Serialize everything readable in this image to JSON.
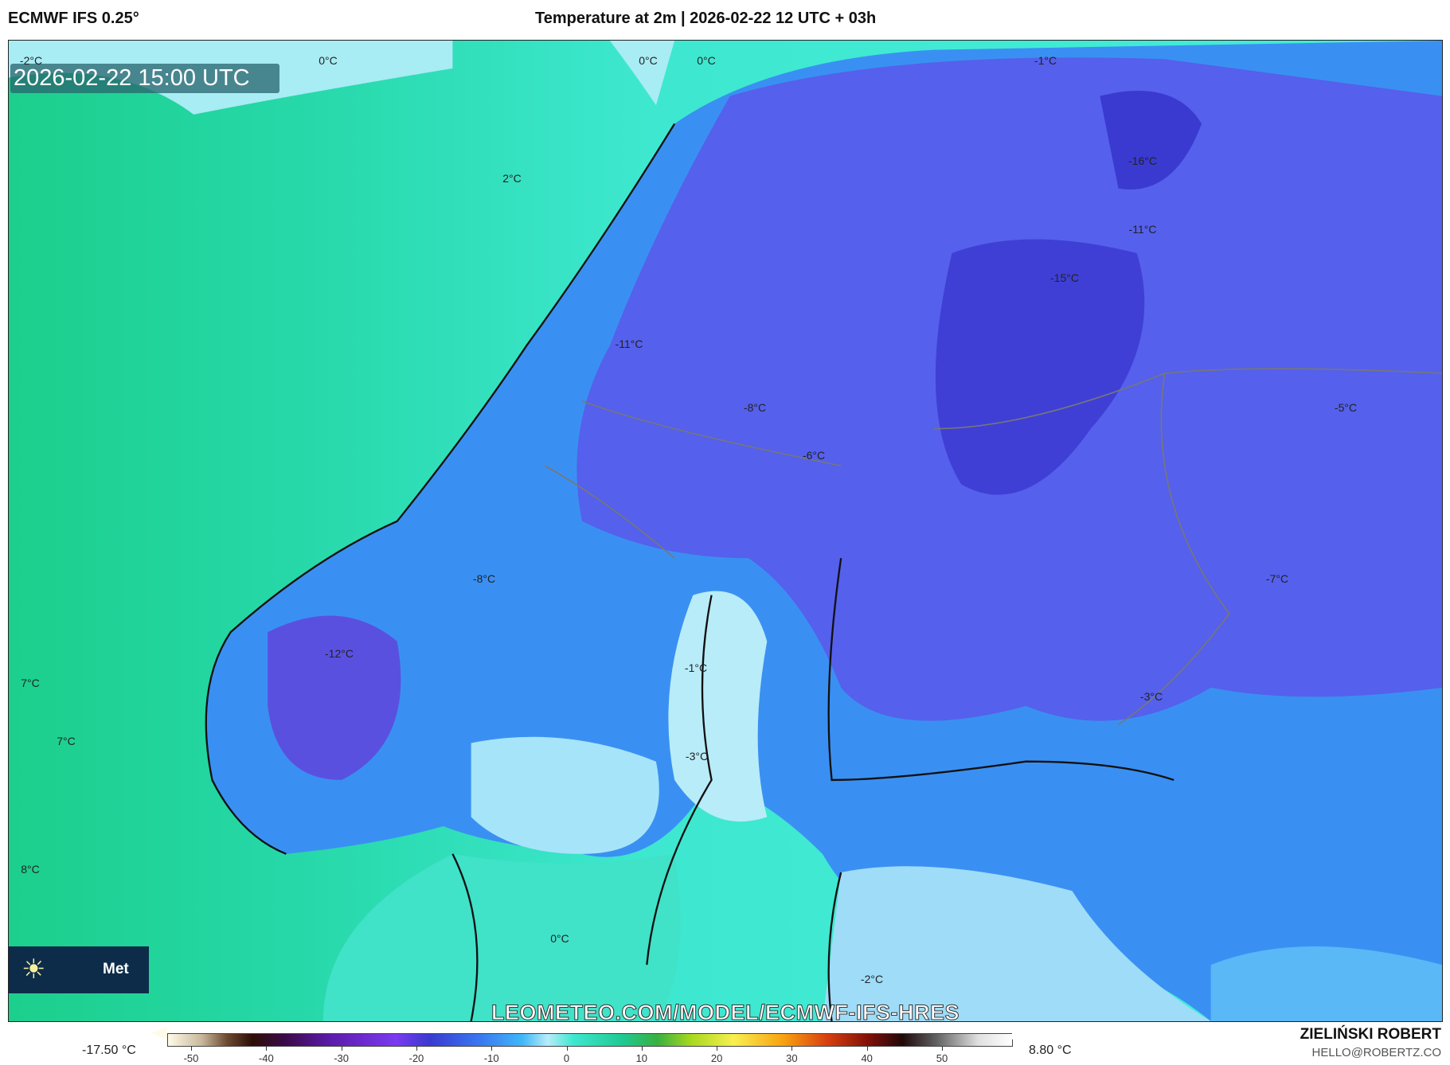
{
  "header": {
    "model": "ECMWF IFS 0.25°",
    "title": "Temperature at 2m | 2026-02-22 12 UTC + 03h"
  },
  "map": {
    "valid_time": "2026-02-22 15:00 UTC",
    "watermark": "LEOMETEO.COM/MODEL/ECMWF-IFS-HRES",
    "logo": {
      "icon": "sun-icon",
      "text": "Met"
    },
    "colors": {
      "sea_warm": "#1fd09a",
      "sea_cool": "#3ee8d0",
      "land_cold": "#3a78f0",
      "land_very_cold": "#5a4ae0",
      "near_zero": "#b8ecf8"
    },
    "contour_labels": [
      {
        "text": "-2°C"
      },
      {
        "text": "0°C"
      },
      {
        "text": "0°C"
      },
      {
        "text": "0°C"
      },
      {
        "text": "-1°C"
      },
      {
        "text": "2°C"
      },
      {
        "text": "-16°C"
      },
      {
        "text": "-11°C"
      },
      {
        "text": "-15°C"
      },
      {
        "text": "-11°C"
      },
      {
        "text": "-8°C"
      },
      {
        "text": "-6°C"
      },
      {
        "text": "-5°C"
      },
      {
        "text": "-8°C"
      },
      {
        "text": "-7°C"
      },
      {
        "text": "-12°C"
      },
      {
        "text": "7°C"
      },
      {
        "text": "-1°C"
      },
      {
        "text": "7°C"
      },
      {
        "text": "-3°C"
      },
      {
        "text": "-3°C"
      },
      {
        "text": "8°C"
      },
      {
        "text": "0°C"
      },
      {
        "text": "-2°C"
      }
    ]
  },
  "legend": {
    "min": "-17.50 °C",
    "max": "8.80 °C",
    "ticks": [
      "-50",
      "-40",
      "-30",
      "-20",
      "-10",
      "0",
      "10",
      "20",
      "30",
      "40",
      "50"
    ]
  },
  "credit": {
    "name": "ZIELIŃSKI ROBERT",
    "email": "HELLO@ROBERTZ.CO"
  }
}
